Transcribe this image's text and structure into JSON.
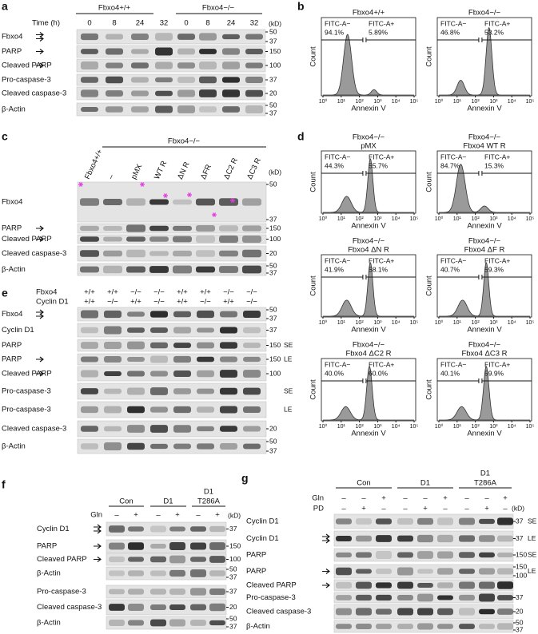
{
  "panel_a": {
    "letter": "a",
    "time_label": "Time (h)",
    "groups": [
      "Fbxo4+/+",
      "Fbxo4−/−"
    ],
    "lanes": [
      "0",
      "8",
      "24",
      "32",
      "0",
      "8",
      "24",
      "32"
    ],
    "unit": "(kD)",
    "rows": [
      {
        "label": "Fbxo4",
        "markers": [
          "50",
          "37"
        ]
      },
      {
        "label": "PARP",
        "markers": [
          "150"
        ]
      },
      {
        "label": "Cleaved PARP",
        "markers": [
          "100"
        ]
      },
      {
        "label": "Pro-caspase-3",
        "markers": [
          "37"
        ]
      },
      {
        "label": "Cleaved caspase-3",
        "markers": [
          "20"
        ]
      },
      {
        "label": "β-Actin",
        "markers": [
          "50",
          "37"
        ]
      }
    ]
  },
  "panel_b": {
    "letter": "b",
    "y_label": "Count",
    "x_label": "Annexin V",
    "ticks": [
      "10⁰",
      "10¹",
      "10²",
      "10³",
      "10⁴",
      "10⁵"
    ],
    "plots": [
      {
        "title": [
          "Fbxo4+/+"
        ],
        "gates": [
          "FITC-A−",
          "FITC-A+"
        ],
        "percents": [
          "94.1%",
          "5.89%"
        ]
      },
      {
        "title": [
          "Fbxo4−/−"
        ],
        "gates": [
          "FITC-A−",
          "FITC-A+"
        ],
        "percents": [
          "46.8%",
          "53.2%"
        ]
      }
    ]
  },
  "panel_c": {
    "letter": "c",
    "group": "Fbxo4−/−",
    "lanes": [
      "Fbxo4+/+",
      "–",
      "pMX",
      "WT R",
      "ΔN R",
      "ΔFR",
      "ΔC2 R",
      "ΔC3 R"
    ],
    "unit": "(kD)",
    "rows": [
      {
        "label": "Fbxo4",
        "markers": [
          "50",
          "37"
        ]
      },
      {
        "label": "PARP",
        "markers": [
          "150"
        ]
      },
      {
        "label": "Cleaved PARP",
        "markers": [
          "100"
        ]
      },
      {
        "label": "Cleaved caspase-3",
        "markers": [
          "20"
        ]
      },
      {
        "label": "β-Actin",
        "markers": [
          "50",
          "37"
        ]
      }
    ]
  },
  "panel_d": {
    "letter": "d",
    "y_label": "Count",
    "x_label": "Annexin V",
    "ticks": [
      "10⁰",
      "10¹",
      "10²",
      "10³",
      "10⁴",
      "10⁵"
    ],
    "plots": [
      {
        "title": [
          "Fbxo4−/−",
          "pMX"
        ],
        "gates": [
          "FITC-A−",
          "FITC-A+"
        ],
        "percents": [
          "44.3%",
          "55.7%"
        ]
      },
      {
        "title": [
          "Fbxo4−/−",
          "Fbxo4 WT R"
        ],
        "gates": [
          "FITC-A−",
          "FITC-A+"
        ],
        "percents": [
          "84.7%",
          "15.3%"
        ]
      },
      {
        "title": [
          "Fbxo4−/−",
          "Fbxo4 ΔN R"
        ],
        "gates": [
          "FITC-A−",
          "FITC-A+"
        ],
        "percents": [
          "41.9%",
          "58.1%"
        ]
      },
      {
        "title": [
          "Fbxo4−/−",
          "Fbxo4 ΔF R"
        ],
        "gates": [
          "FITC-A−",
          "FITC-A+"
        ],
        "percents": [
          "40.7%",
          "59.3%"
        ]
      },
      {
        "title": [
          "Fbxo4−/−",
          "Fbxo4 ΔC2 R"
        ],
        "gates": [
          "FITC-A−",
          "FITC-A+"
        ],
        "percents": [
          "40.0%",
          "60.0%"
        ]
      },
      {
        "title": [
          "Fbxo4−/−",
          "Fbxo4 ΔC3 R"
        ],
        "gates": [
          "FITC-A−",
          "FITC-A+"
        ],
        "percents": [
          "40.1%",
          "59.9%"
        ]
      }
    ]
  },
  "panel_e": {
    "letter": "e",
    "genotypes": [
      {
        "label": "Fbxo4",
        "values": [
          "+/+",
          "+/+",
          "−/−",
          "−/−",
          "+/+",
          "+/+",
          "−/−",
          "−/−"
        ]
      },
      {
        "label": "Cyclin D1",
        "values": [
          "+/+",
          "−/−",
          "+/+",
          "−/−",
          "+/+",
          "−/−",
          "+/+",
          "−/−"
        ]
      }
    ],
    "rows": [
      {
        "label": "Fbxo4",
        "markers": [
          "50",
          "37"
        ]
      },
      {
        "label": "Cyclin D1",
        "markers": [
          "37"
        ]
      },
      {
        "label": "PARP",
        "markers": [
          "150"
        ],
        "note": "SE"
      },
      {
        "label": "PARP",
        "markers": [
          "150"
        ],
        "note": "LE"
      },
      {
        "label": "Cleaved PARP",
        "markers": [
          "100"
        ]
      },
      {
        "label": "Pro-caspase-3",
        "markers": [],
        "note": "SE"
      },
      {
        "label": "Pro-caspase-3",
        "markers": [],
        "note": "LE"
      },
      {
        "label": "Cleaved caspase-3",
        "markers": [
          "20"
        ]
      },
      {
        "label": "β-Actin",
        "markers": [
          "50",
          "37"
        ]
      }
    ]
  },
  "panel_f": {
    "letter": "f",
    "groups": [
      [
        "Con"
      ],
      [
        "D1"
      ],
      [
        "D1",
        "T286A"
      ]
    ],
    "treatments": [
      {
        "label": "Gln",
        "values": [
          "–",
          "+",
          "–",
          "+",
          "–",
          "+"
        ]
      }
    ],
    "unit": "(kD)",
    "rows": [
      {
        "label": "Cyclin D1",
        "markers": [
          "37"
        ]
      },
      {
        "label": "PARP",
        "markers": [
          "150"
        ]
      },
      {
        "label": "Cleaved PARP",
        "markers": [
          "100"
        ]
      },
      {
        "label": "β-Actin",
        "markers": [
          "50",
          "37"
        ]
      },
      {
        "label": "Pro-caspase-3",
        "markers": [
          "37"
        ]
      },
      {
        "label": "Cleaved caspase-3",
        "markers": [
          "20"
        ]
      },
      {
        "label": "β-Actin",
        "markers": [
          "50",
          "37"
        ]
      }
    ]
  },
  "panel_g": {
    "letter": "g",
    "groups": [
      [
        "Con"
      ],
      [
        "D1"
      ],
      [
        "D1",
        "T286A"
      ]
    ],
    "treatments": [
      {
        "label": "Gln",
        "values": [
          "–",
          "–",
          "+",
          "–",
          "–",
          "+",
          "–",
          "–",
          "+"
        ]
      },
      {
        "label": "PD",
        "values": [
          "–",
          "+",
          "–",
          "–",
          "+",
          "–",
          "–",
          "+",
          "–"
        ]
      }
    ],
    "unit": "(kD)",
    "rows": [
      {
        "label": "Cyclin D1",
        "markers": [
          "37"
        ],
        "note": "SE"
      },
      {
        "label": "Cyclin D1",
        "markers": [
          "37"
        ],
        "note": "LE"
      },
      {
        "label": "PARP",
        "markers": [
          "150"
        ],
        "note": "SE"
      },
      {
        "label": "PARP",
        "markers": [
          "150",
          "100"
        ],
        "note": "LE"
      },
      {
        "label": "Cleaved PARP",
        "markers": []
      },
      {
        "label": "Pro-caspase-3",
        "markers": [
          "37"
        ]
      },
      {
        "label": "Cleaved caspase-3",
        "markers": [
          "20"
        ]
      },
      {
        "label": "β-Actin",
        "markers": [
          "50",
          "37"
        ]
      }
    ]
  }
}
